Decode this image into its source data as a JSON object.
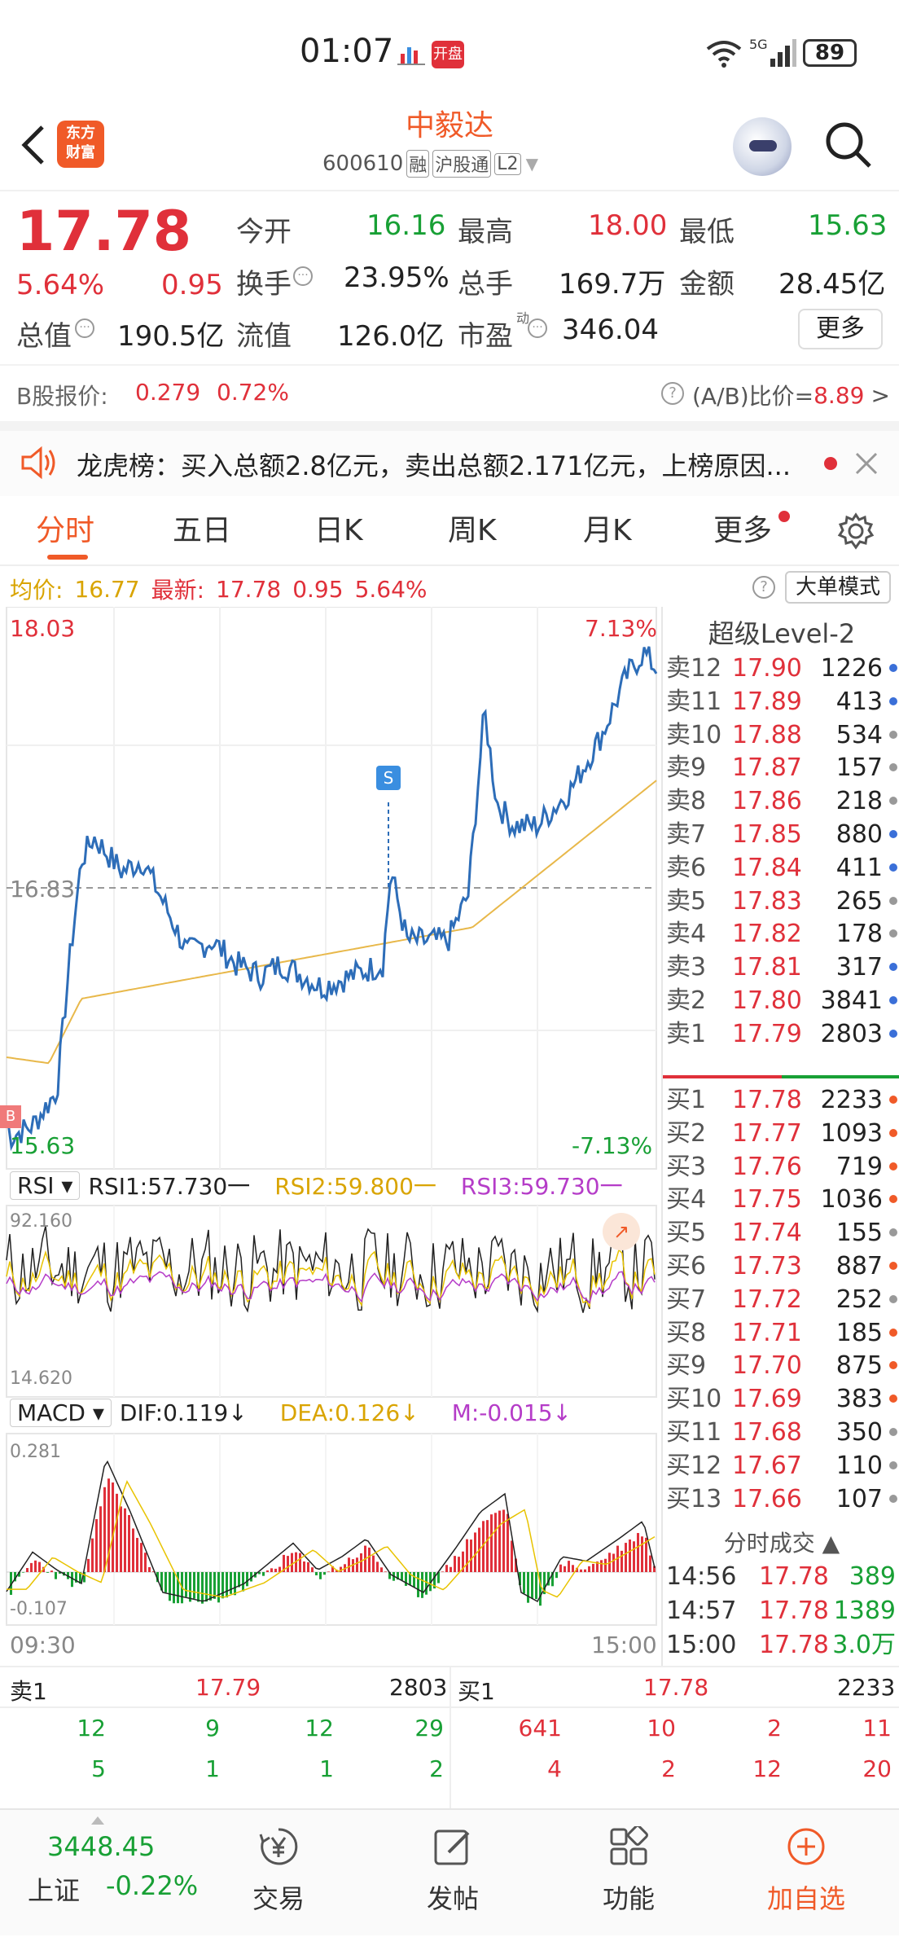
{
  "status_bar": {
    "time": "01:07",
    "open_badge": "开盘",
    "signal": "5G",
    "wifi": "6",
    "battery": "89"
  },
  "nav": {
    "app_logo_top": "东方",
    "app_logo_bottom": "财富",
    "stock_name": "中毅达",
    "code": "600610",
    "tag1": "融",
    "tag2": "沪股通",
    "tag3": "L2"
  },
  "quote": {
    "price": "17.78",
    "change_pct": "5.64%",
    "change": "0.95",
    "open_label": "今开",
    "open": "16.16",
    "high_label": "最高",
    "high": "18.00",
    "low_label": "最低",
    "low": "15.63",
    "turnover_label": "换手",
    "turnover": "23.95%",
    "volume_label": "总手",
    "volume": "169.7万",
    "amount_label": "金额",
    "amount": "28.45亿",
    "mktcap_label": "总值",
    "mktcap": "190.5亿",
    "float_label": "流值",
    "float": "126.0亿",
    "pe_label": "市盈",
    "pe_sup": "动",
    "pe": "346.04",
    "more": "更多"
  },
  "bshare": {
    "label": "B股报价:",
    "price": "0.279",
    "pct": "0.72%",
    "ratio_label": "(A/B)比价=",
    "ratio": "8.89",
    "arrow": ">"
  },
  "dragon": {
    "text": "龙虎榜：买入总额2.8亿元，卖出总额2.171亿元，上榜原因..."
  },
  "tabs": [
    "分时",
    "五日",
    "日K",
    "周K",
    "月K",
    "更多"
  ],
  "avg_line": {
    "avg_label": "均价:",
    "avg": "16.77",
    "latest_label": "最新:",
    "latest": "17.78",
    "chg": "0.95",
    "pct": "5.64%",
    "big_order": "大单模式"
  },
  "chart": {
    "top_price": "18.03",
    "top_pct": "7.13%",
    "mid_price": "16.83",
    "bottom_price": "15.63",
    "bottom_pct": "-7.13%",
    "rsi_selector": "RSI",
    "rsi1": "RSI1:57.730一",
    "rsi2": "RSI2:59.800一",
    "rsi3": "RSI3:59.730一",
    "rsi_top": "92.160",
    "rsi_bottom": "14.620",
    "macd_selector": "MACD",
    "dif": "DIF:0.119↓",
    "dea": "DEA:0.126↓",
    "m": "M:-0.015↓",
    "macd_top": "0.281",
    "macd_bottom": "-0.107",
    "time_start": "09:30",
    "time_end": "15:00",
    "s_marker": "S",
    "b_marker": "B",
    "colors": {
      "price": "#2d6db8",
      "avg": "#e8b84a",
      "up": "#e0303a",
      "down": "#18a035",
      "rsi2": "#e8c300",
      "rsi3": "#b53cc8"
    }
  },
  "level2": {
    "title": "超级Level-2",
    "asks": [
      {
        "label": "卖12",
        "price": "17.90",
        "vol": "1226",
        "dot": "blue"
      },
      {
        "label": "卖11",
        "price": "17.89",
        "vol": "413",
        "dot": "blue"
      },
      {
        "label": "卖10",
        "price": "17.88",
        "vol": "534",
        "dot": "gray"
      },
      {
        "label": "卖9",
        "price": "17.87",
        "vol": "157",
        "dot": "gray"
      },
      {
        "label": "卖8",
        "price": "17.86",
        "vol": "218",
        "dot": "gray"
      },
      {
        "label": "卖7",
        "price": "17.85",
        "vol": "880",
        "dot": "blue"
      },
      {
        "label": "卖6",
        "price": "17.84",
        "vol": "411",
        "dot": "blue"
      },
      {
        "label": "卖5",
        "price": "17.83",
        "vol": "265",
        "dot": "gray"
      },
      {
        "label": "卖4",
        "price": "17.82",
        "vol": "178",
        "dot": "gray"
      },
      {
        "label": "卖3",
        "price": "17.81",
        "vol": "317",
        "dot": "blue"
      },
      {
        "label": "卖2",
        "price": "17.80",
        "vol": "3841",
        "dot": "blue"
      },
      {
        "label": "卖1",
        "price": "17.79",
        "vol": "2803",
        "dot": "blue"
      }
    ],
    "bids": [
      {
        "label": "买1",
        "price": "17.78",
        "vol": "2233",
        "dot": "orange"
      },
      {
        "label": "买2",
        "price": "17.77",
        "vol": "1093",
        "dot": "orange"
      },
      {
        "label": "买3",
        "price": "17.76",
        "vol": "719",
        "dot": "orange"
      },
      {
        "label": "买4",
        "price": "17.75",
        "vol": "1036",
        "dot": "orange"
      },
      {
        "label": "买5",
        "price": "17.74",
        "vol": "155",
        "dot": "gray"
      },
      {
        "label": "买6",
        "price": "17.73",
        "vol": "887",
        "dot": "orange"
      },
      {
        "label": "买7",
        "price": "17.72",
        "vol": "252",
        "dot": "gray"
      },
      {
        "label": "买8",
        "price": "17.71",
        "vol": "185",
        "dot": "orange"
      },
      {
        "label": "买9",
        "price": "17.70",
        "vol": "875",
        "dot": "orange"
      },
      {
        "label": "买10",
        "price": "17.69",
        "vol": "383",
        "dot": "orange"
      },
      {
        "label": "买11",
        "price": "17.68",
        "vol": "350",
        "dot": "gray"
      },
      {
        "label": "买12",
        "price": "17.67",
        "vol": "110",
        "dot": "gray"
      },
      {
        "label": "买13",
        "price": "17.66",
        "vol": "107",
        "dot": "gray"
      }
    ],
    "ticks_title": "分时成交",
    "ticks": [
      {
        "time": "14:56",
        "price": "17.78",
        "vol": "389"
      },
      {
        "time": "14:57",
        "price": "17.78",
        "vol": "1389"
      },
      {
        "time": "15:00",
        "price": "17.78",
        "vol": "3.0万"
      }
    ]
  },
  "bottom_table": {
    "left_label": "卖1",
    "left_price": "17.79",
    "left_vol": "2803",
    "right_label": "买1",
    "right_price": "17.78",
    "right_vol": "2233",
    "left_rows": [
      [
        "12",
        "9",
        "12",
        "29"
      ],
      [
        "5",
        "1",
        "1",
        "2"
      ]
    ],
    "right_rows": [
      [
        "641",
        "10",
        "2",
        "11"
      ],
      [
        "4",
        "2",
        "12",
        "20"
      ]
    ]
  },
  "tabbar": {
    "index_value": "3448.45",
    "index_name": "上证",
    "index_pct": "-0.22%",
    "items": [
      "交易",
      "发帖",
      "功能",
      "加自选"
    ]
  }
}
